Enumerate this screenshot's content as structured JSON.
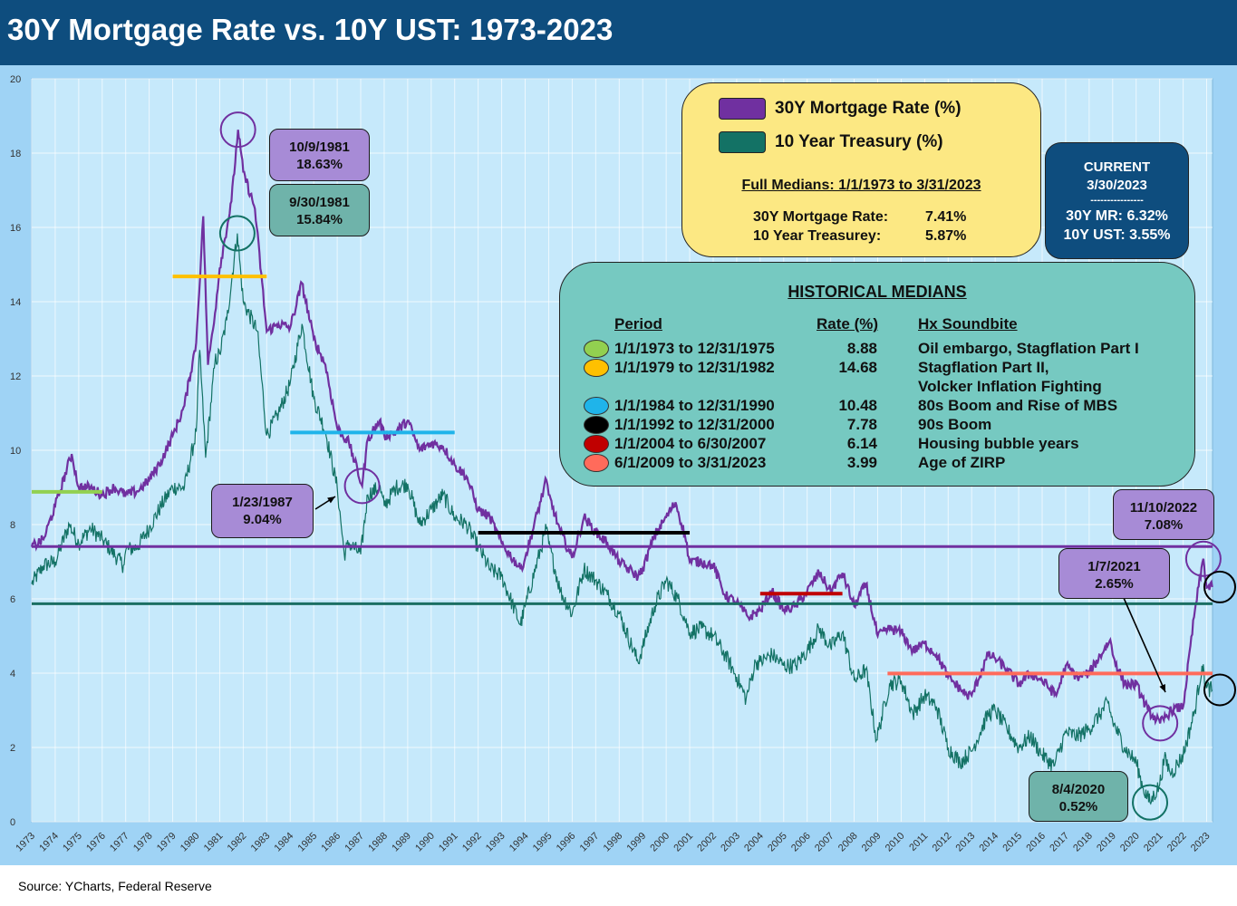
{
  "title": "30Y Mortgage Rate vs. 10Y UST: 1973-2023",
  "source": "Source: YCharts, Federal Reserve",
  "colors": {
    "header": "#0e4d7e",
    "plot_bg": "#c6e9fb",
    "mortgage": "#7030a0",
    "treasury": "#1a7a6a",
    "median_mortgage_line": "#7030a0",
    "median_treasury_line": "#1a6e62"
  },
  "legend": {
    "items": [
      {
        "label": "30Y Mortgage Rate (%)",
        "color": "#7030a0"
      },
      {
        "label": "10 Year Treasury (%)",
        "color": "#137265"
      }
    ],
    "medians_title": "Full Medians: 1/1/1973 to 3/31/2023",
    "median_rows": [
      {
        "label": "30Y Mortgage Rate:",
        "value": "7.41%"
      },
      {
        "label": "10 Year Treasurey:",
        "value": "5.87%"
      }
    ]
  },
  "current": {
    "heading": "CURRENT",
    "date": "3/30/2023",
    "divider": "----------------",
    "mr": "30Y MR: 6.32%",
    "ust": "10Y UST: 3.55%"
  },
  "historical": {
    "title": "HISTORICAL MEDIANS",
    "headers": {
      "period": "Period",
      "rate": "Rate (%)",
      "soundbite": "Hx Soundbite"
    },
    "rows": [
      {
        "period": "1/1/1973 to 12/31/1975",
        "rate": "8.88",
        "soundbite": "Oil embargo, Stagflation Part I",
        "color": "#92d050"
      },
      {
        "period": "1/1/1979 to 12/31/1982",
        "rate": "14.68",
        "soundbite": "Stagflation Part II,",
        "soundbite2": "Volcker Inflation Fighting",
        "color": "#ffc000"
      },
      {
        "period": "1/1/1984 to 12/31/1990",
        "rate": "10.48",
        "soundbite": "80s Boom and Rise of MBS",
        "color": "#1fb4ea"
      },
      {
        "period": "1/1/1992 to 12/31/2000",
        "rate": "7.78",
        "soundbite": "90s Boom",
        "color": "#000000"
      },
      {
        "period": "1/1/2004 to 6/30/2007",
        "rate": "6.14",
        "soundbite": "Housing bubble years",
        "color": "#c00000"
      },
      {
        "period": "6/1/2009 to 3/31/2023",
        "rate": "3.99",
        "soundbite": "Age of ZIRP",
        "color": "#ff6b5b"
      }
    ]
  },
  "callouts": [
    {
      "id": "peak-mr",
      "line1": "10/9/1981",
      "line2": "18.63%",
      "style": "purple"
    },
    {
      "id": "peak-ust",
      "line1": "9/30/1981",
      "line2": "15.84%",
      "style": "teal"
    },
    {
      "id": "mr-1987",
      "line1": "1/23/1987",
      "line2": "9.04%",
      "style": "purple"
    },
    {
      "id": "mr-2022",
      "line1": "11/10/2022",
      "line2": "7.08%",
      "style": "purple"
    },
    {
      "id": "mr-2021",
      "line1": "1/7/2021",
      "line2": "2.65%",
      "style": "purple"
    },
    {
      "id": "ust-2020",
      "line1": "8/4/2020",
      "line2": "0.52%",
      "style": "teal"
    }
  ],
  "chart_data": {
    "type": "line",
    "title": "30Y Mortgage Rate vs. 10Y UST: 1973-2023",
    "xlabel": "",
    "ylabel": "",
    "xlim": [
      1973.0,
      2023.25
    ],
    "ylim": [
      0,
      20
    ],
    "yticks": [
      0,
      2,
      4,
      6,
      8,
      10,
      12,
      14,
      16,
      18,
      20
    ],
    "xticks": [
      "1973",
      "1974",
      "1975",
      "1976",
      "1977",
      "1978",
      "1979",
      "1980",
      "1981",
      "1982",
      "1983",
      "1984",
      "1985",
      "1986",
      "1987",
      "1988",
      "1989",
      "1990",
      "1991",
      "1992",
      "1993",
      "1994",
      "1995",
      "1996",
      "1997",
      "1998",
      "1999",
      "2000",
      "2001",
      "2002",
      "2003",
      "2004",
      "2005",
      "2006",
      "2007",
      "2008",
      "2009",
      "2010",
      "2011",
      "2012",
      "2013",
      "2014",
      "2015",
      "2016",
      "2017",
      "2018",
      "2019",
      "2020",
      "2021",
      "2022",
      "2023"
    ],
    "grid": true,
    "series": [
      {
        "name": "30Y Mortgage Rate (%)",
        "color": "#7030a0",
        "x": [
          1973.0,
          1973.5,
          1974.0,
          1974.7,
          1975.0,
          1975.5,
          1976.0,
          1976.5,
          1977.0,
          1977.5,
          1978.0,
          1978.5,
          1979.0,
          1979.5,
          1980.0,
          1980.3,
          1980.5,
          1980.8,
          1981.0,
          1981.5,
          1981.78,
          1982.0,
          1982.5,
          1983.0,
          1983.5,
          1984.0,
          1984.5,
          1985.0,
          1985.5,
          1986.0,
          1986.5,
          1987.06,
          1987.3,
          1987.8,
          1988.0,
          1988.5,
          1989.0,
          1989.5,
          1990.0,
          1990.5,
          1991.0,
          1991.5,
          1992.0,
          1992.5,
          1993.0,
          1993.8,
          1994.0,
          1994.9,
          1995.0,
          1995.5,
          1996.0,
          1996.5,
          1997.0,
          1997.5,
          1998.0,
          1998.8,
          1999.0,
          1999.5,
          2000.0,
          2000.4,
          2000.8,
          2001.0,
          2001.5,
          2002.0,
          2002.5,
          2003.0,
          2003.5,
          2004.0,
          2004.5,
          2005.0,
          2005.5,
          2006.0,
          2006.5,
          2007.0,
          2007.5,
          2008.0,
          2008.5,
          2009.0,
          2009.5,
          2010.0,
          2010.5,
          2011.0,
          2011.5,
          2012.0,
          2012.8,
          2013.0,
          2013.7,
          2014.0,
          2014.5,
          2015.0,
          2015.5,
          2016.0,
          2016.6,
          2017.0,
          2017.5,
          2018.0,
          2018.9,
          2019.0,
          2019.5,
          2020.0,
          2020.5,
          2021.02,
          2021.5,
          2022.0,
          2022.5,
          2022.86,
          2023.0,
          2023.24
        ],
        "y": [
          7.4,
          7.6,
          8.5,
          9.9,
          9.0,
          9.0,
          8.8,
          9.0,
          8.8,
          8.9,
          9.2,
          9.7,
          10.4,
          11.2,
          12.9,
          16.3,
          12.3,
          13.7,
          14.9,
          16.7,
          18.63,
          17.5,
          16.5,
          13.2,
          13.4,
          13.3,
          14.5,
          13.0,
          12.3,
          10.6,
          10.2,
          9.04,
          10.3,
          10.8,
          10.4,
          10.5,
          10.8,
          10.0,
          10.2,
          10.1,
          9.6,
          9.3,
          8.4,
          8.2,
          7.5,
          6.8,
          7.1,
          9.2,
          8.8,
          7.8,
          7.1,
          8.2,
          7.8,
          7.5,
          7.0,
          6.6,
          6.8,
          7.7,
          8.2,
          8.6,
          7.7,
          7.0,
          7.0,
          6.9,
          6.1,
          5.9,
          5.5,
          5.7,
          6.2,
          5.7,
          5.8,
          6.2,
          6.7,
          6.2,
          6.7,
          5.8,
          6.4,
          5.0,
          5.2,
          5.1,
          4.6,
          4.8,
          4.5,
          3.9,
          3.4,
          3.4,
          4.5,
          4.4,
          4.1,
          3.7,
          4.0,
          3.8,
          3.4,
          4.2,
          3.9,
          4.0,
          4.9,
          4.5,
          3.7,
          3.7,
          3.0,
          2.65,
          3.0,
          3.1,
          5.7,
          7.08,
          6.3,
          6.32
        ]
      },
      {
        "name": "10 Year Treasury (%)",
        "color": "#137265",
        "x": [
          1973.0,
          1973.5,
          1974.0,
          1974.6,
          1975.0,
          1975.5,
          1976.0,
          1976.9,
          1977.0,
          1977.5,
          1978.0,
          1978.5,
          1979.0,
          1979.5,
          1980.0,
          1980.15,
          1980.4,
          1980.8,
          1981.0,
          1981.3,
          1981.75,
          1982.0,
          1982.6,
          1983.0,
          1983.5,
          1984.0,
          1984.5,
          1985.0,
          1985.5,
          1986.0,
          1986.3,
          1986.5,
          1987.0,
          1987.3,
          1987.8,
          1988.0,
          1988.5,
          1989.0,
          1989.5,
          1990.0,
          1990.5,
          1991.0,
          1991.5,
          1992.0,
          1992.5,
          1993.0,
          1993.8,
          1994.0,
          1994.9,
          1995.0,
          1995.5,
          1996.0,
          1996.5,
          1997.0,
          1997.5,
          1998.0,
          1998.8,
          1999.0,
          1999.5,
          2000.0,
          2000.5,
          2001.0,
          2001.5,
          2002.0,
          2002.5,
          2003.0,
          2003.4,
          2003.8,
          2004.0,
          2004.5,
          2005.0,
          2005.5,
          2006.0,
          2006.5,
          2007.0,
          2007.5,
          2008.0,
          2008.5,
          2008.95,
          2009.5,
          2010.0,
          2010.5,
          2011.0,
          2011.5,
          2012.0,
          2012.5,
          2013.0,
          2013.7,
          2014.0,
          2014.5,
          2015.0,
          2015.5,
          2016.0,
          2016.5,
          2017.0,
          2017.5,
          2018.0,
          2018.8,
          2019.0,
          2019.5,
          2020.0,
          2020.3,
          2020.59,
          2021.0,
          2021.2,
          2021.5,
          2022.0,
          2022.5,
          2022.8,
          2023.0,
          2023.24
        ],
        "y": [
          6.4,
          6.9,
          7.0,
          8.0,
          7.5,
          7.9,
          7.6,
          6.9,
          7.3,
          7.4,
          7.9,
          8.5,
          9.0,
          9.0,
          10.5,
          12.7,
          9.8,
          12.4,
          12.6,
          13.5,
          15.84,
          14.0,
          13.2,
          10.4,
          11.0,
          11.8,
          13.4,
          11.4,
          10.5,
          9.0,
          7.2,
          7.5,
          7.2,
          8.8,
          9.0,
          8.5,
          9.0,
          9.1,
          8.0,
          8.4,
          8.8,
          8.2,
          8.0,
          7.4,
          6.8,
          6.6,
          5.3,
          5.8,
          7.9,
          7.5,
          6.2,
          5.6,
          6.8,
          6.5,
          6.1,
          5.6,
          4.3,
          4.7,
          5.8,
          6.5,
          6.0,
          5.1,
          5.2,
          5.0,
          4.5,
          3.9,
          3.3,
          4.3,
          4.3,
          4.5,
          4.2,
          4.2,
          4.6,
          5.2,
          4.7,
          5.1,
          3.8,
          4.1,
          2.2,
          3.7,
          3.8,
          2.9,
          3.4,
          3.1,
          2.0,
          1.6,
          1.9,
          2.9,
          3.0,
          2.5,
          2.0,
          2.3,
          1.8,
          1.5,
          2.4,
          2.3,
          2.5,
          3.2,
          2.7,
          2.0,
          1.6,
          0.9,
          0.52,
          1.0,
          1.7,
          1.3,
          1.8,
          3.0,
          4.2,
          3.6,
          3.55
        ]
      }
    ],
    "reference_lines": [
      {
        "label": "Full median 30Y Mortgage Rate",
        "value": 7.41,
        "color": "#7030a0"
      },
      {
        "label": "Full median 10 Year Treasury",
        "value": 5.87,
        "color": "#1a6e62"
      }
    ],
    "period_medians": [
      {
        "x0": 1973.0,
        "x1": 1976.0,
        "value": 8.88,
        "color": "#92d050"
      },
      {
        "x0": 1979.0,
        "x1": 1983.0,
        "value": 14.68,
        "color": "#ffc000"
      },
      {
        "x0": 1984.0,
        "x1": 1991.0,
        "value": 10.48,
        "color": "#1fb4ea"
      },
      {
        "x0": 1992.0,
        "x1": 2001.0,
        "value": 7.78,
        "color": "#000000"
      },
      {
        "x0": 2004.0,
        "x1": 2007.5,
        "value": 6.14,
        "color": "#c00000"
      },
      {
        "x0": 2009.42,
        "x1": 2023.25,
        "value": 3.99,
        "color": "#ff6b5b"
      }
    ],
    "highlight_points": [
      {
        "series": "30Y Mortgage Rate (%)",
        "x": 1981.78,
        "y": 18.63,
        "label": "10/9/1981"
      },
      {
        "series": "10 Year Treasury (%)",
        "x": 1981.75,
        "y": 15.84,
        "label": "9/30/1981"
      },
      {
        "series": "30Y Mortgage Rate (%)",
        "x": 1987.06,
        "y": 9.04,
        "label": "1/23/1987"
      },
      {
        "series": "30Y Mortgage Rate (%)",
        "x": 2022.86,
        "y": 7.08,
        "label": "11/10/2022"
      },
      {
        "series": "30Y Mortgage Rate (%)",
        "x": 2021.02,
        "y": 2.65,
        "label": "1/7/2021"
      },
      {
        "series": "10 Year Treasury (%)",
        "x": 2020.59,
        "y": 0.52,
        "label": "8/4/2020"
      },
      {
        "series": "30Y Mortgage Rate (%)",
        "x": 2023.24,
        "y": 6.32,
        "label": "current"
      },
      {
        "series": "10 Year Treasury (%)",
        "x": 2023.24,
        "y": 3.55,
        "label": "current"
      }
    ]
  }
}
